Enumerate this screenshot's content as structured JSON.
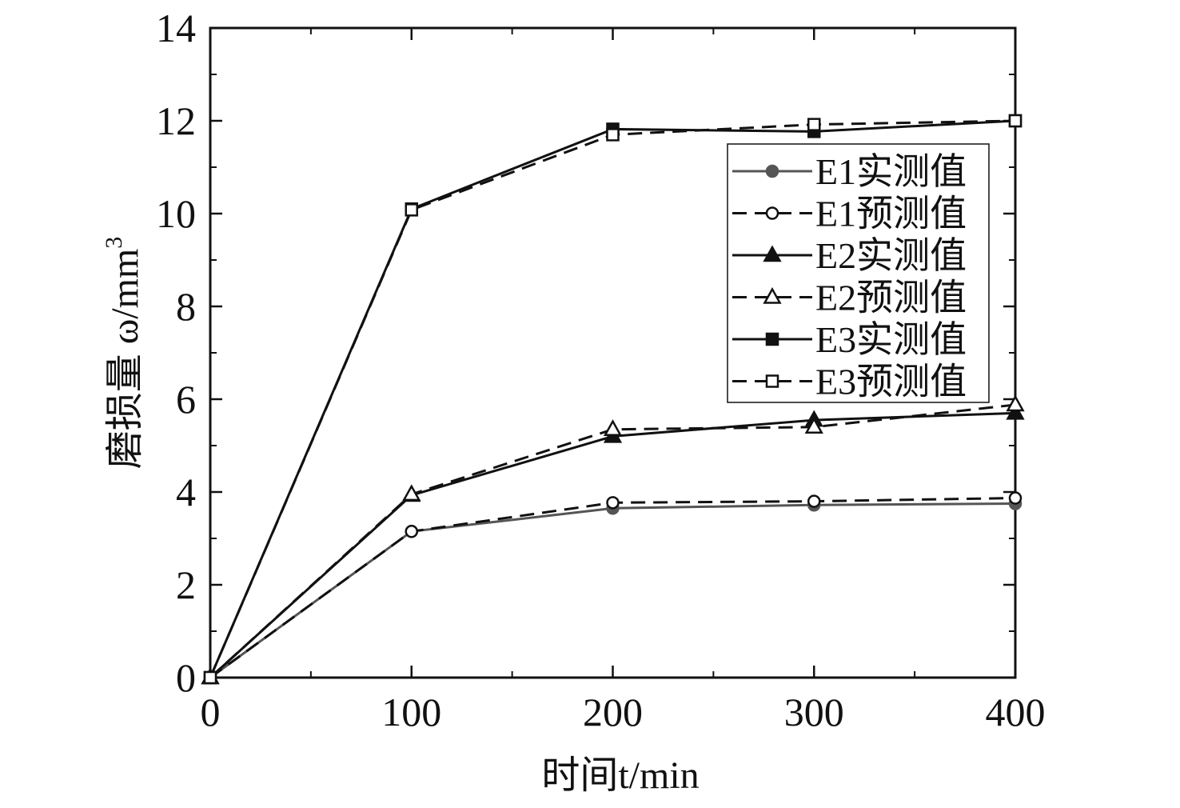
{
  "chart_data": {
    "type": "line",
    "title": "",
    "xlabel": "时间t/min",
    "ylabel": "磨损量 ω/mm",
    "ylabel_sup": "3",
    "xlim": [
      0,
      400
    ],
    "ylim": [
      0,
      14
    ],
    "x_ticks": [
      0,
      100,
      200,
      300,
      400
    ],
    "y_ticks": [
      0,
      2,
      4,
      6,
      8,
      10,
      12,
      14
    ],
    "x_minor_step": 50,
    "y_minor_step": 1,
    "grid": false,
    "legend_position": "top-right",
    "x": [
      0,
      100,
      200,
      300,
      400
    ],
    "series": [
      {
        "name": "E1实测值",
        "values": [
          0,
          3.15,
          3.65,
          3.72,
          3.75
        ],
        "line": "solid",
        "marker": "circle",
        "filled": true,
        "color": "#555555"
      },
      {
        "name": "E1预测值",
        "values": [
          0,
          3.15,
          3.77,
          3.8,
          3.87
        ],
        "line": "dashed",
        "marker": "circle",
        "filled": false,
        "color": "#111111"
      },
      {
        "name": "E2实测值",
        "values": [
          0,
          3.93,
          5.2,
          5.55,
          5.7
        ],
        "line": "solid",
        "marker": "triangle",
        "filled": true,
        "color": "#111111"
      },
      {
        "name": "E2预测值",
        "values": [
          0,
          3.95,
          5.35,
          5.4,
          5.88
        ],
        "line": "dashed",
        "marker": "triangle",
        "filled": false,
        "color": "#111111"
      },
      {
        "name": "E3实测值",
        "values": [
          0,
          10.1,
          11.82,
          11.77,
          12.0
        ],
        "line": "solid",
        "marker": "square",
        "filled": true,
        "color": "#111111"
      },
      {
        "name": "E3预测值",
        "values": [
          0,
          10.08,
          11.7,
          11.92,
          12.0
        ],
        "line": "dashed",
        "marker": "square",
        "filled": false,
        "color": "#111111"
      }
    ]
  }
}
